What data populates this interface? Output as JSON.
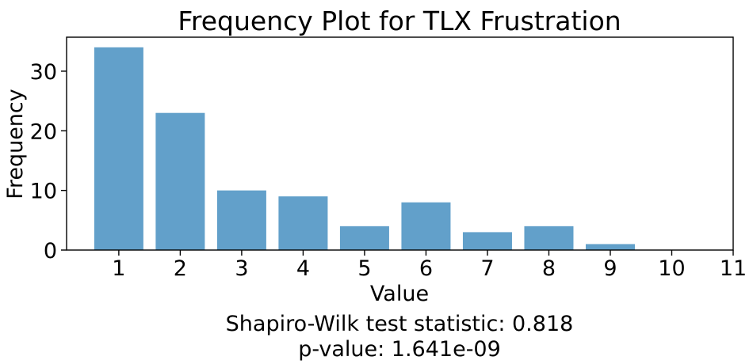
{
  "chart_data": {
    "type": "bar",
    "title": "Frequency Plot for TLX Frustration",
    "xlabel": "Value",
    "ylabel": "Frequency",
    "x": [
      1,
      2,
      3,
      4,
      5,
      6,
      7,
      8,
      9,
      10
    ],
    "values": [
      34,
      23,
      10,
      9,
      4,
      8,
      3,
      4,
      1,
      0
    ],
    "x_ticks": [
      "1",
      "2",
      "3",
      "4",
      "5",
      "6",
      "7",
      "8",
      "9",
      "10",
      "11"
    ],
    "y_ticks": [
      "0",
      "10",
      "20",
      "30"
    ],
    "xlim": [
      0.15,
      11
    ],
    "ylim": [
      0,
      35.7
    ],
    "bar_color": "#1f77b4",
    "bar_alpha": 0.7,
    "grid": false,
    "legend": "none"
  },
  "annotations": {
    "statistic": "Shapiro-Wilk test statistic: 0.818",
    "p_value": "p-value: 1.641e-09"
  }
}
